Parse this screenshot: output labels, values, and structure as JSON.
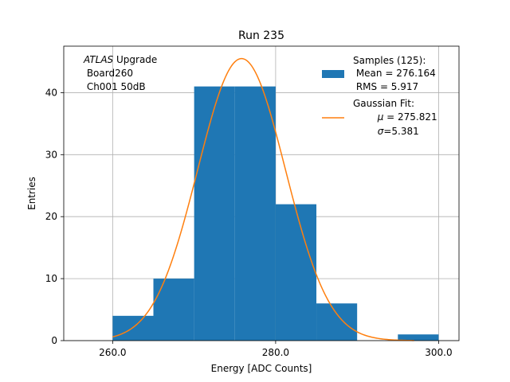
{
  "chart_data": {
    "type": "bar",
    "title": "Run 235",
    "xlabel": "Energy [ADC Counts]",
    "ylabel": "Entries",
    "xlim": [
      254,
      302.5
    ],
    "ylim": [
      0,
      47.5
    ],
    "grid": true,
    "x_ticks": [
      260,
      280,
      300
    ],
    "x_tick_labels": [
      "260.0",
      "280.0",
      "300.0"
    ],
    "y_ticks": [
      0,
      10,
      20,
      30,
      40
    ],
    "y_tick_labels": [
      "0",
      "10",
      "20",
      "30",
      "40"
    ],
    "histogram": {
      "name": "Samples",
      "color": "#1f77b4",
      "bins": [
        {
          "x0": 260,
          "x1": 265,
          "count": 4
        },
        {
          "x0": 265,
          "x1": 270,
          "count": 10
        },
        {
          "x0": 270,
          "x1": 275,
          "count": 41
        },
        {
          "x0": 275,
          "x1": 280,
          "count": 41
        },
        {
          "x0": 280,
          "x1": 285,
          "count": 22
        },
        {
          "x0": 285,
          "x1": 290,
          "count": 6
        },
        {
          "x0": 295,
          "x1": 300,
          "count": 1
        }
      ]
    },
    "fit": {
      "name": "Gaussian Fit",
      "color": "#ff7f0e",
      "mu": 275.821,
      "sigma": 5.381,
      "peak": 45.5,
      "x_range": [
        260,
        297
      ]
    },
    "annotation": {
      "line1_italic": "ATLAS",
      "line1_rest": " Upgrade",
      "line2": " Board260",
      "line3": " Ch001 50dB"
    },
    "legend": {
      "position": "upper right",
      "hist_line1": "Samples (125):",
      "hist_line2": " Mean = 276.164",
      "hist_line3": " RMS = 5.917",
      "fit_line1": "Gaussian Fit:",
      "fit_mu_symbol": "μ",
      "fit_mu_value": " = 275.821",
      "fit_sigma_symbol": "σ",
      "fit_sigma_value": "=5.381"
    }
  }
}
